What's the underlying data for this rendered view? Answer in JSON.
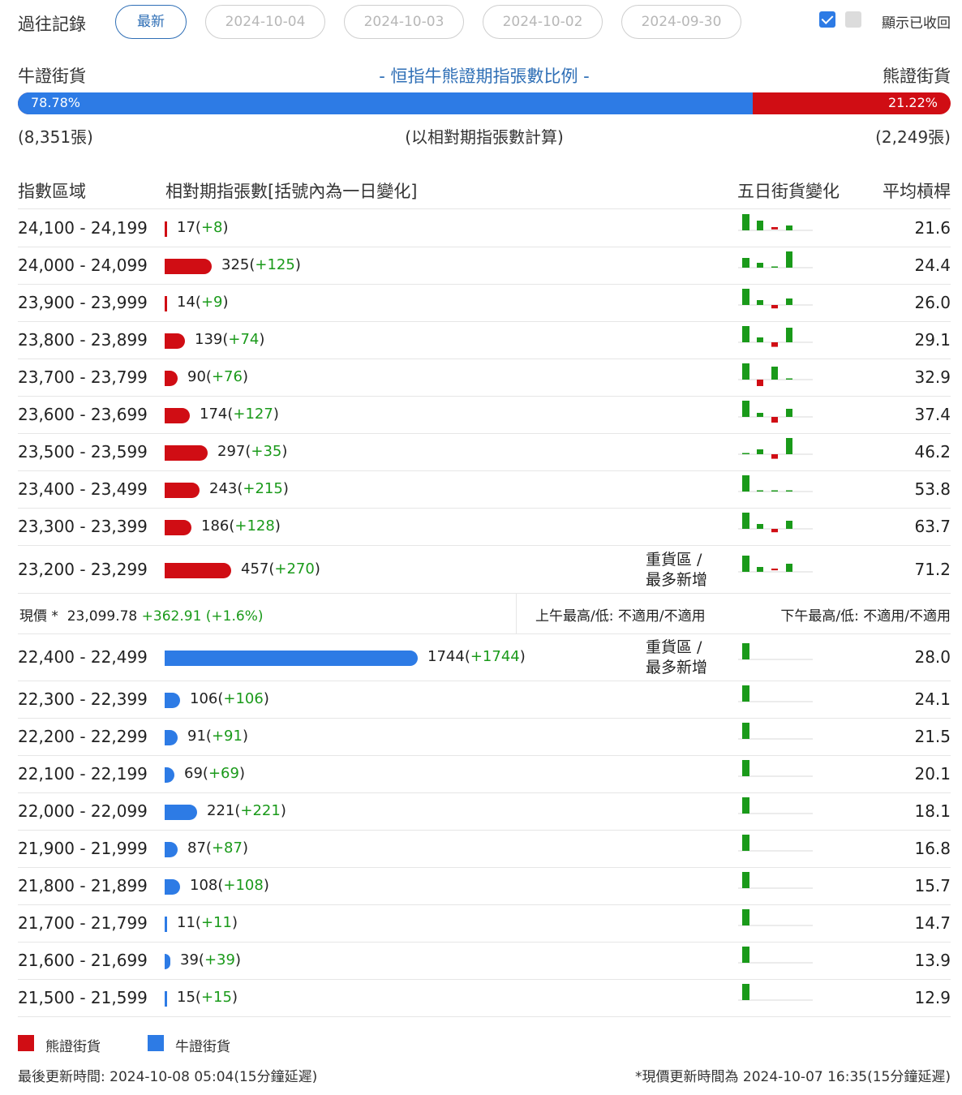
{
  "header": {
    "history_label": "過往記錄",
    "tabs": [
      "最新",
      "2024-10-04",
      "2024-10-03",
      "2024-10-02",
      "2024-09-30"
    ],
    "show_recovered_label": "顯示已收回"
  },
  "ratio": {
    "bull_label": "牛證街貨",
    "bear_label": "熊證街貨",
    "title": "- 恒指牛熊證期指張數比例 -",
    "bull_pct": "78.78%",
    "bear_pct": "21.22%",
    "bull_fraction": 0.7878,
    "bull_count": "(8,351張)",
    "bear_count": "(2,249張)",
    "basis": "(以相對期指張數計算)"
  },
  "table": {
    "headers": {
      "range": "指數區域",
      "contracts": "相對期指張數[括號內為一日變化]",
      "five_day": "五日街貨變化",
      "avg_leverage": "平均槓桿"
    },
    "heavy_label_1": "重貨區 /",
    "heavy_label_2": "最多新增",
    "bear_rows": [
      {
        "range": "24,100 - 24,199",
        "count": "17",
        "change": "+8",
        "avg": "21.6",
        "spark": [
          1,
          0.6,
          -0.2,
          0.3
        ]
      },
      {
        "range": "24,000 - 24,099",
        "count": "325",
        "change": "+125",
        "avg": "24.4",
        "spark": [
          0.6,
          0.3,
          0.05,
          1
        ]
      },
      {
        "range": "23,900 - 23,999",
        "count": "14",
        "change": "+9",
        "avg": "26.0",
        "spark": [
          1,
          0.3,
          -0.3,
          0.4
        ]
      },
      {
        "range": "23,800 - 23,899",
        "count": "139",
        "change": "+74",
        "avg": "29.1",
        "spark": [
          1,
          0.3,
          -0.4,
          0.9
        ]
      },
      {
        "range": "23,700 - 23,799",
        "count": "90",
        "change": "+76",
        "avg": "32.9",
        "spark": [
          1,
          -0.6,
          0.8,
          0.05
        ]
      },
      {
        "range": "23,600 - 23,699",
        "count": "174",
        "change": "+127",
        "avg": "37.4",
        "spark": [
          1,
          0.25,
          -0.5,
          0.5
        ]
      },
      {
        "range": "23,500 - 23,599",
        "count": "297",
        "change": "+35",
        "avg": "46.2",
        "spark": [
          0.05,
          0.3,
          -0.4,
          1
        ]
      },
      {
        "range": "23,400 - 23,499",
        "count": "243",
        "change": "+215",
        "avg": "53.8",
        "spark": [
          1,
          0.05,
          0.05,
          0.05
        ]
      },
      {
        "range": "23,300 - 23,399",
        "count": "186",
        "change": "+128",
        "avg": "63.7",
        "spark": [
          1,
          0.3,
          -0.3,
          0.5
        ]
      },
      {
        "range": "23,200 - 23,299",
        "count": "457",
        "change": "+270",
        "avg": "71.2",
        "spark": [
          1,
          0.3,
          -0.15,
          0.5
        ],
        "heavy": true
      }
    ],
    "current_price": {
      "label": "現價 *",
      "value": "23,099.78",
      "change": "+362.91 (+1.6%)",
      "am": "上午最高/低: 不適用/不適用",
      "pm": "下午最高/低: 不適用/不適用"
    },
    "bull_rows": [
      {
        "range": "22,400 - 22,499",
        "count": "1744",
        "change": "+1744",
        "avg": "28.0",
        "spark": [
          1
        ],
        "heavy": true
      },
      {
        "range": "22,300 - 22,399",
        "count": "106",
        "change": "+106",
        "avg": "24.1",
        "spark": [
          1
        ]
      },
      {
        "range": "22,200 - 22,299",
        "count": "91",
        "change": "+91",
        "avg": "21.5",
        "spark": [
          1
        ]
      },
      {
        "range": "22,100 - 22,199",
        "count": "69",
        "change": "+69",
        "avg": "20.1",
        "spark": [
          1
        ]
      },
      {
        "range": "22,000 - 22,099",
        "count": "221",
        "change": "+221",
        "avg": "18.1",
        "spark": [
          1
        ]
      },
      {
        "range": "21,900 - 21,999",
        "count": "87",
        "change": "+87",
        "avg": "16.8",
        "spark": [
          1
        ]
      },
      {
        "range": "21,800 - 21,899",
        "count": "108",
        "change": "+108",
        "avg": "15.7",
        "spark": [
          1
        ]
      },
      {
        "range": "21,700 - 21,799",
        "count": "11",
        "change": "+11",
        "avg": "14.7",
        "spark": [
          1
        ]
      },
      {
        "range": "21,600 - 21,699",
        "count": "39",
        "change": "+39",
        "avg": "13.9",
        "spark": [
          1
        ]
      },
      {
        "range": "21,500 - 21,599",
        "count": "15",
        "change": "+15",
        "avg": "12.9",
        "spark": [
          1
        ]
      }
    ]
  },
  "legend": {
    "bear": "熊證街貨",
    "bull": "牛證街貨"
  },
  "footer": {
    "last_update": "最後更新時間: 2024-10-08 05:04(15分鐘延遲)",
    "price_update": "*現價更新時間為 2024-10-07 16:35(15分鐘延遲)"
  },
  "colors": {
    "bear": "#d00d14",
    "bull": "#2d7be5",
    "spark_up": "#1a9a1a",
    "spark_down": "#d00d14",
    "change": "#1a9a1a",
    "accent": "#2f6fb6"
  }
}
